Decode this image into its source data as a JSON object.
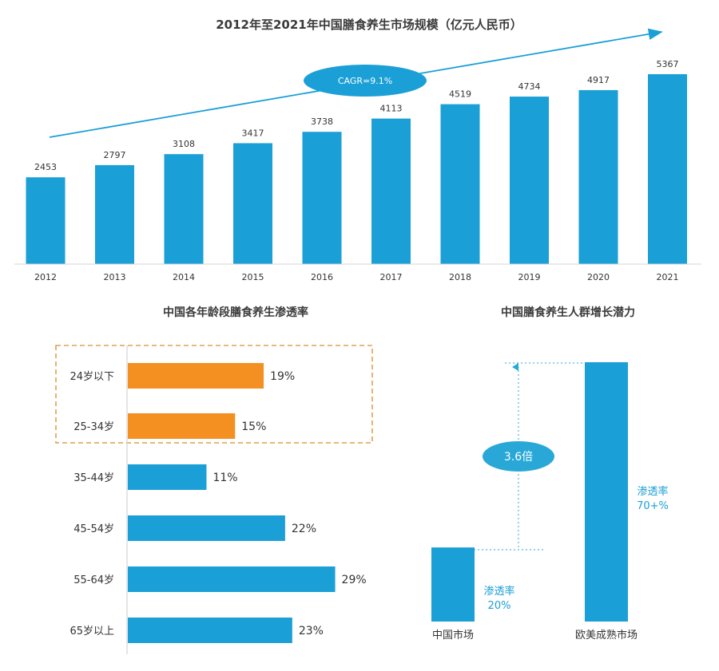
{
  "chart_data": [
    {
      "type": "bar",
      "title": "2012年至2021年中国膳食养生市场规模（亿元人民币）",
      "categories": [
        "2012",
        "2013",
        "2014",
        "2015",
        "2016",
        "2017",
        "2018",
        "2019",
        "2020",
        "2021"
      ],
      "values": [
        2453,
        2797,
        3108,
        3417,
        3738,
        4113,
        4519,
        4734,
        4917,
        5367
      ],
      "annotation": "CAGR=9.1%",
      "xlabel": "",
      "ylabel": "",
      "ylim": [
        0,
        5500
      ],
      "color": "#1a9fd6"
    },
    {
      "type": "bar",
      "orientation": "horizontal",
      "title": "中国各年龄段膳食养生渗透率",
      "categories": [
        "24岁以下",
        "25-34岁",
        "35-44岁",
        "45-54岁",
        "55-64岁",
        "65岁以上"
      ],
      "values": [
        19,
        15,
        11,
        22,
        29,
        23
      ],
      "value_labels": [
        "19%",
        "15%",
        "11%",
        "22%",
        "29%",
        "23%"
      ],
      "highlighted": [
        "24岁以下",
        "25-34岁"
      ],
      "colors": {
        "highlight": "#f39021",
        "normal": "#1a9fd6"
      }
    },
    {
      "type": "bar",
      "title": "中国膳食养生人群增长潜力",
      "categories": [
        "中国市场",
        "欧美成熟市场"
      ],
      "values": [
        20,
        70
      ],
      "value_label_line1": "渗透率",
      "value_labels": [
        "20%",
        "70+%"
      ],
      "ratio_label": "3.6倍",
      "color": "#1a9fd6"
    }
  ]
}
